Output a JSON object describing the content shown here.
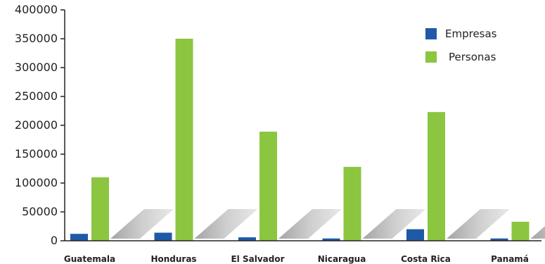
{
  "chart_data": {
    "type": "bar",
    "categories": [
      "Guatemala",
      "Honduras",
      "El Salvador",
      "Nicaragua",
      "Costa Rica",
      "Panamá"
    ],
    "series": [
      {
        "name": "Empresas",
        "values": [
          12000,
          14000,
          6000,
          4000,
          20000,
          4000
        ],
        "color": "#1f5aa6"
      },
      {
        "name": "Personas",
        "values": [
          110000,
          350000,
          189000,
          128000,
          223000,
          33000
        ],
        "color": "#8cc540"
      }
    ],
    "ylim": [
      0,
      400000
    ],
    "yticks": [
      "0",
      "50000",
      "100000",
      "150000",
      "200000",
      "250000",
      "300000",
      "350000",
      "400000"
    ],
    "legend_position": "top-right",
    "grid": false
  }
}
